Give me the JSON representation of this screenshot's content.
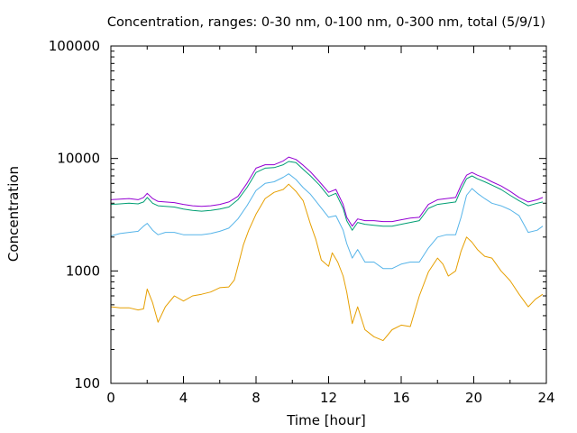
{
  "chart_data": {
    "type": "line",
    "title": "Concentration, ranges: 0-30 nm, 0-100 nm, 0-300 nm, total (5/9/1)",
    "xlabel": "Time [hour]",
    "ylabel": "Concentration",
    "xlim": [
      0,
      24
    ],
    "ylim": [
      100,
      100000
    ],
    "yscale": "log",
    "grid": false,
    "xticks": [
      "0",
      "4",
      "8",
      "12",
      "16",
      "20",
      "24"
    ],
    "yticks": [
      "100",
      "1000",
      "10000",
      "100000"
    ],
    "series": [
      {
        "color": "#e69f00",
        "x": [
          0,
          0.5,
          1,
          1.5,
          1.8,
          2,
          2.3,
          2.6,
          3,
          3.5,
          4,
          4.5,
          5,
          5.5,
          6,
          6.5,
          6.8,
          7,
          7.3,
          7.6,
          8,
          8.5,
          9,
          9.5,
          9.8,
          10.2,
          10.6,
          11,
          11.3,
          11.6,
          12,
          12.2,
          12.5,
          12.8,
          13,
          13.3,
          13.6,
          14,
          14.5,
          15,
          15.5,
          16,
          16.5,
          17,
          17.5,
          18,
          18.3,
          18.6,
          19,
          19.3,
          19.6,
          19.9,
          20.2,
          20.6,
          21,
          21.5,
          22,
          22.5,
          23,
          23.4,
          23.8
        ],
        "y": [
          480,
          470,
          470,
          450,
          460,
          690,
          520,
          350,
          480,
          600,
          540,
          600,
          620,
          650,
          710,
          720,
          830,
          1100,
          1700,
          2300,
          3200,
          4400,
          5000,
          5300,
          5900,
          5100,
          4200,
          2600,
          1900,
          1250,
          1100,
          1450,
          1200,
          900,
          650,
          340,
          480,
          300,
          260,
          240,
          300,
          330,
          320,
          600,
          980,
          1300,
          1150,
          900,
          1000,
          1500,
          2000,
          1800,
          1550,
          1350,
          1300,
          1000,
          820,
          620,
          480,
          560,
          620
        ]
      },
      {
        "color": "#56b4e9",
        "x": [
          0,
          0.5,
          1,
          1.5,
          1.8,
          2,
          2.3,
          2.6,
          3,
          3.5,
          4,
          4.5,
          5,
          5.5,
          6,
          6.5,
          7,
          7.5,
          8,
          8.5,
          9,
          9.5,
          9.8,
          10.2,
          10.6,
          11,
          11.5,
          12,
          12.4,
          12.8,
          13,
          13.3,
          13.6,
          14,
          14.5,
          15,
          15.5,
          16,
          16.5,
          17,
          17.5,
          18,
          18.5,
          19,
          19.3,
          19.6,
          19.9,
          20.2,
          20.6,
          21,
          21.5,
          22,
          22.5,
          23,
          23.5,
          23.8
        ],
        "y": [
          2050,
          2150,
          2200,
          2250,
          2500,
          2650,
          2300,
          2100,
          2200,
          2200,
          2100,
          2100,
          2100,
          2150,
          2250,
          2400,
          2900,
          3800,
          5200,
          6000,
          6200,
          6800,
          7300,
          6500,
          5500,
          4800,
          3800,
          3000,
          3100,
          2300,
          1750,
          1300,
          1550,
          1200,
          1200,
          1050,
          1050,
          1150,
          1200,
          1200,
          1600,
          2000,
          2100,
          2100,
          3000,
          4700,
          5400,
          4900,
          4400,
          4000,
          3800,
          3500,
          3100,
          2200,
          2300,
          2500
        ]
      },
      {
        "color": "#009e73",
        "x": [
          0,
          0.5,
          1,
          1.5,
          1.8,
          2,
          2.3,
          2.6,
          3,
          3.5,
          4,
          4.5,
          5,
          5.5,
          6,
          6.5,
          7,
          7.5,
          8,
          8.5,
          9,
          9.5,
          9.8,
          10.2,
          10.6,
          11,
          11.5,
          12,
          12.4,
          12.8,
          13,
          13.3,
          13.6,
          14,
          14.5,
          15,
          15.5,
          16,
          16.5,
          17,
          17.5,
          18,
          18.5,
          19,
          19.3,
          19.6,
          19.9,
          20.2,
          20.6,
          21,
          21.5,
          22,
          22.5,
          23,
          23.5,
          23.8
        ],
        "y": [
          3900,
          3950,
          4000,
          3950,
          4100,
          4500,
          4000,
          3800,
          3750,
          3700,
          3550,
          3450,
          3400,
          3450,
          3550,
          3700,
          4300,
          5500,
          7500,
          8200,
          8300,
          8800,
          9400,
          9200,
          8000,
          7000,
          5800,
          4600,
          4900,
          3600,
          2800,
          2300,
          2700,
          2600,
          2550,
          2500,
          2500,
          2600,
          2700,
          2800,
          3600,
          3900,
          4000,
          4100,
          5300,
          6600,
          7000,
          6600,
          6200,
          5800,
          5300,
          4700,
          4200,
          3800,
          4000,
          4100
        ]
      },
      {
        "color": "#9400d3",
        "x": [
          0,
          0.5,
          1,
          1.5,
          1.8,
          2,
          2.3,
          2.6,
          3,
          3.5,
          4,
          4.5,
          5,
          5.5,
          6,
          6.5,
          7,
          7.5,
          8,
          8.5,
          9,
          9.5,
          9.8,
          10.2,
          10.6,
          11,
          11.5,
          12,
          12.4,
          12.8,
          13,
          13.3,
          13.6,
          14,
          14.5,
          15,
          15.5,
          16,
          16.5,
          17,
          17.5,
          18,
          18.5,
          19,
          19.3,
          19.6,
          19.9,
          20.2,
          20.6,
          21,
          21.5,
          22,
          22.5,
          23,
          23.5,
          23.8
        ],
        "y": [
          4300,
          4350,
          4400,
          4300,
          4500,
          4900,
          4400,
          4150,
          4100,
          4050,
          3900,
          3800,
          3750,
          3800,
          3900,
          4100,
          4600,
          6000,
          8200,
          8800,
          8800,
          9500,
          10300,
          9800,
          8700,
          7600,
          6200,
          5000,
          5300,
          3900,
          3000,
          2500,
          2900,
          2800,
          2800,
          2750,
          2750,
          2850,
          2950,
          3000,
          3900,
          4300,
          4400,
          4500,
          5800,
          7100,
          7500,
          7100,
          6700,
          6200,
          5700,
          5100,
          4500,
          4100,
          4300,
          4500
        ]
      }
    ]
  }
}
